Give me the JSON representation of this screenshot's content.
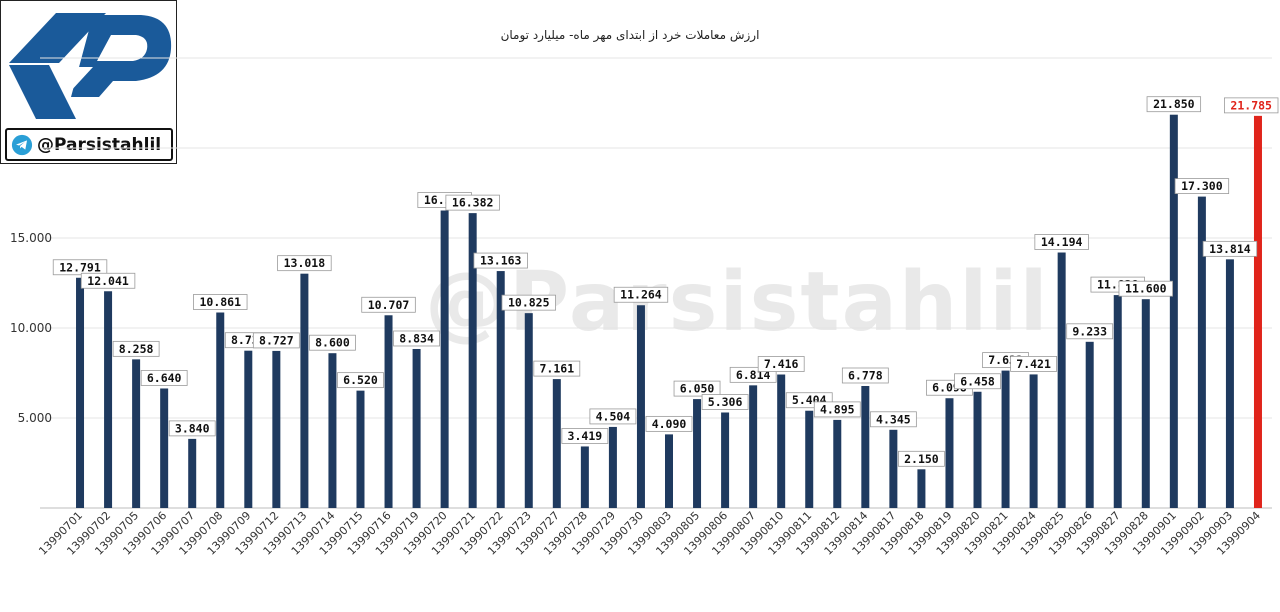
{
  "header": {
    "title": "ارزش معاملات خرد از ابتدای مهر ماه- میلیارد تومان",
    "watermark": "@Parsistahlil",
    "channel_handle": "@Parsistahlil"
  },
  "colors": {
    "bar": "#1f3a5f",
    "highlight": "#e0241b",
    "logo": "#1a5a9a",
    "grid": "#e4e4e4"
  },
  "chart_data": {
    "type": "bar",
    "title": "ارزش معاملات خرد از ابتدای مهر ماه- میلیارد تومان",
    "xlabel": "",
    "ylabel": "",
    "ylim": [
      0,
      25000
    ],
    "yticks": [
      5000,
      10000,
      15000
    ],
    "ytick_labels": [
      "5.000",
      "10.000",
      "15.000"
    ],
    "grid": true,
    "categories": [
      "13990701",
      "13990702",
      "13990705",
      "13990706",
      "13990707",
      "13990708",
      "13990709",
      "13990712",
      "13990713",
      "13990714",
      "13990715",
      "13990716",
      "13990719",
      "13990720",
      "13990721",
      "13990722",
      "13990723",
      "13990727",
      "13990728",
      "13990729",
      "13990730",
      "13990803",
      "13990805",
      "13990806",
      "13990807",
      "13990810",
      "13990811",
      "13990812",
      "13990814",
      "13990817",
      "13990818",
      "13990819",
      "13990820",
      "13990821",
      "13990824",
      "13990825",
      "13990826",
      "13990827",
      "13990828",
      "13990901",
      "13990902",
      "13990903",
      "13990904"
    ],
    "values": [
      12791,
      12041,
      8258,
      6640,
      3840,
      10861,
      8739,
      8727,
      13018,
      8600,
      6520,
      10707,
      8834,
      16527,
      16382,
      13163,
      10825,
      7161,
      3419,
      4504,
      11264,
      4090,
      6050,
      5306,
      6814,
      7416,
      5404,
      4895,
      6778,
      4345,
      2150,
      6098,
      6458,
      7633,
      7421,
      14194,
      9233,
      11828,
      11600,
      21850,
      17300,
      13814,
      21785
    ],
    "value_labels": [
      "12.791",
      "12.041",
      "8.258",
      "6.640",
      "3.840",
      "10.861",
      "8.739",
      "8.727",
      "13.018",
      "8.600",
      "6.520",
      "10.707",
      "8.834",
      "16.527",
      "16.382",
      "13.163",
      "10.825",
      "7.161",
      "3.419",
      "4.504",
      "11.264",
      "4.090",
      "6.050",
      "5.306",
      "6.814",
      "7.416",
      "5.404",
      "4.895",
      "6.778",
      "4.345",
      "2.150",
      "6.098",
      "6.458",
      "7.633",
      "7.421",
      "14.194",
      "9.233",
      "11.828",
      "11.600",
      "21.850",
      "17.300",
      "13.814",
      "21.785"
    ],
    "highlight_index": 42
  }
}
